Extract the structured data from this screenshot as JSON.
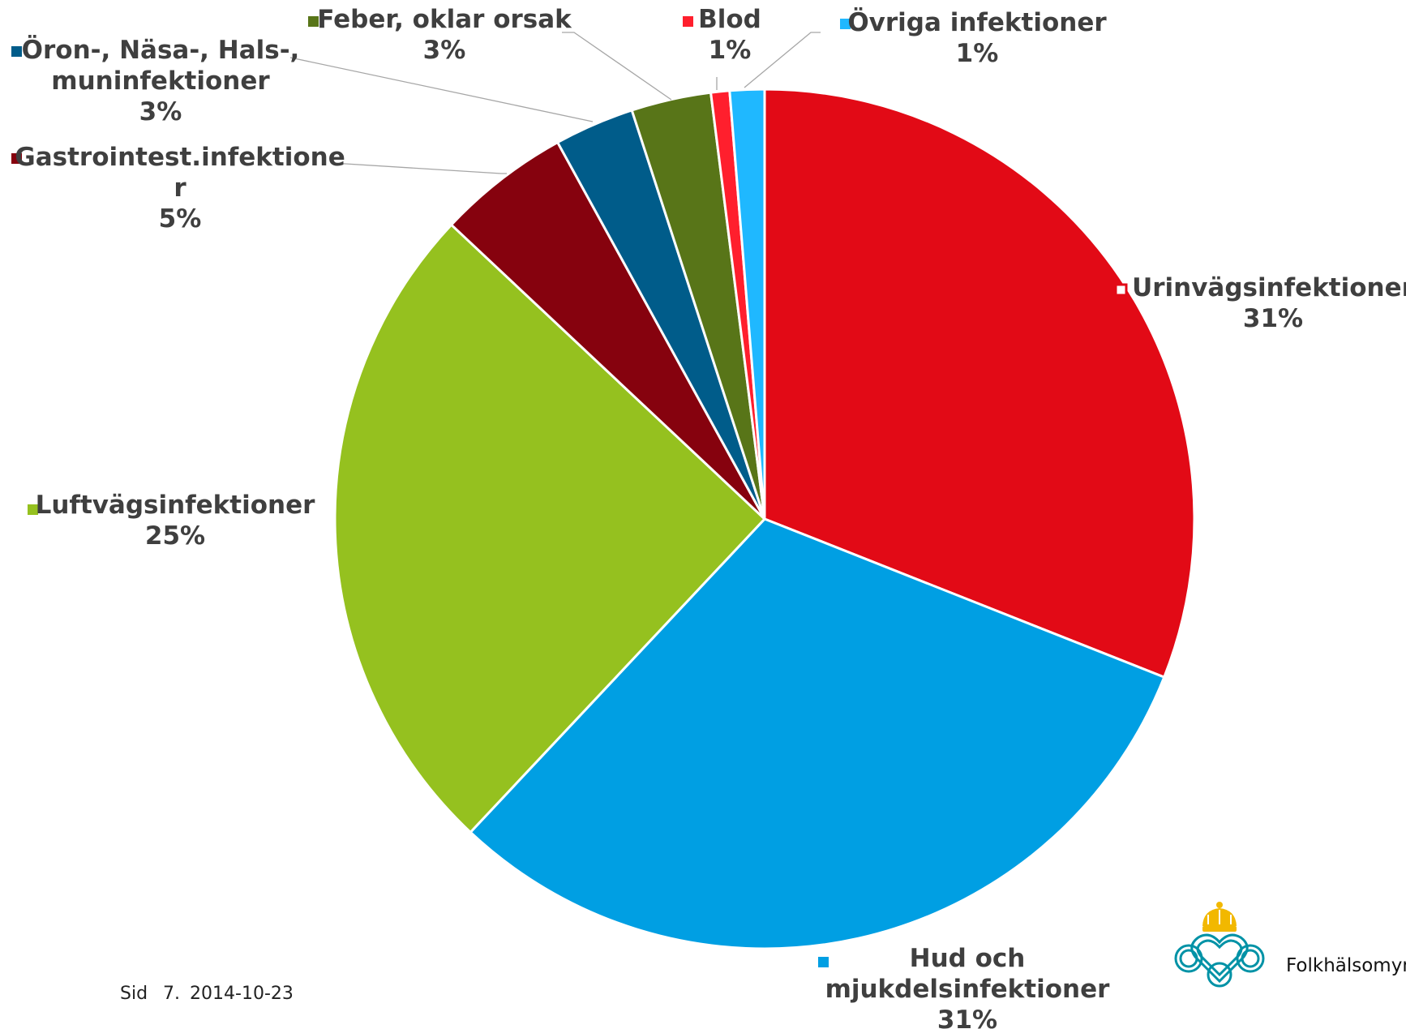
{
  "chart_data": {
    "type": "pie",
    "start_angle_deg": 0,
    "direction": "clockwise",
    "slices": [
      {
        "label": "Urinvägsinfektioner",
        "value": 31,
        "display": "31%",
        "color": "#e20a16"
      },
      {
        "label": "Hud och mjukdelsinfektioner",
        "value": 31,
        "display": "31%",
        "color": "#009fe3"
      },
      {
        "label": "Luftvägsinfektioner",
        "value": 25,
        "display": "25%",
        "color": "#95c11f"
      },
      {
        "label": "Gastrointest.infektioner",
        "value": 5,
        "display": "5%",
        "color": "#86020e"
      },
      {
        "label": "Öron-, Näsa-, Hals-, muninfektioner",
        "value": 3,
        "display": "3%",
        "color": "#005c8a"
      },
      {
        "label": "Feber, oklar orsak",
        "value": 3,
        "display": "3%",
        "color": "#587518"
      },
      {
        "label": "Blod",
        "value": 0.7,
        "display": "1%",
        "color": "#ff1f2d"
      },
      {
        "label": "Övriga infektioner",
        "value": 1.3,
        "display": "1%",
        "color": "#1fb8ff"
      }
    ]
  },
  "footer": {
    "page": "Sid",
    "number": "7.",
    "date": "2014-10-23"
  },
  "logo": {
    "text": "Folkhälsomyndigheten",
    "crown_color": "#f2b800",
    "mark_color": "#0092a6"
  }
}
